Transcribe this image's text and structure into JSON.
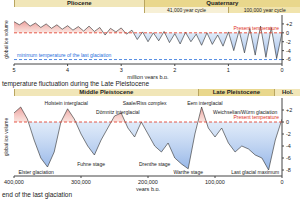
{
  "heading": "temperature fluctuation during the Late Pleistocene",
  "caption": "end of the last glaciation",
  "chart_data": [
    {
      "type": "area",
      "x_label": "million years b.p.",
      "y_label": "global ice volume",
      "periods": [
        {
          "name": "Pliocene",
          "start": 5,
          "end": 2.58
        },
        {
          "name": "Quaternary",
          "start": 2.58,
          "end": 0
        }
      ],
      "cycles": [
        {
          "name": "41,000 year cycle",
          "start": 2.58,
          "end": 1
        },
        {
          "name": "100,000 year cycle",
          "start": 1,
          "end": 0
        }
      ],
      "x": [
        5.0,
        4.9,
        4.8,
        4.7,
        4.6,
        4.5,
        4.4,
        4.3,
        4.2,
        4.1,
        4.0,
        3.9,
        3.8,
        3.7,
        3.6,
        3.5,
        3.4,
        3.3,
        3.2,
        3.1,
        3.0,
        2.9,
        2.8,
        2.7,
        2.6,
        2.5,
        2.4,
        2.3,
        2.2,
        2.1,
        2.0,
        1.9,
        1.8,
        1.7,
        1.6,
        1.5,
        1.4,
        1.3,
        1.2,
        1.1,
        1.0,
        0.9,
        0.8,
        0.7,
        0.6,
        0.5,
        0.4,
        0.3,
        0.2,
        0.1,
        0.0
      ],
      "values": [
        2.5,
        1.8,
        2.6,
        1.5,
        2.2,
        1.2,
        2.0,
        1.0,
        1.8,
        0.8,
        1.6,
        0.6,
        1.4,
        0.4,
        1.5,
        0.3,
        1.2,
        -0.5,
        1.0,
        0.2,
        1.1,
        -0.3,
        0.6,
        -1.5,
        0.2,
        -2.0,
        0.0,
        -1.8,
        0.3,
        -2.2,
        -0.2,
        -2.5,
        0.1,
        -2.0,
        -0.3,
        -2.8,
        0.0,
        -2.6,
        -0.5,
        -3.0,
        0.2,
        -4.0,
        0.5,
        -4.5,
        1.0,
        -5.0,
        1.5,
        -5.5,
        1.2,
        -5.8,
        0.0
      ],
      "color": "#2b2b2b",
      "xlim": [
        5,
        0
      ],
      "xticks": [
        5,
        4,
        3,
        2,
        1,
        0
      ],
      "ylim": [
        -7,
        4
      ],
      "yticks": [
        {
          "value": 2,
          "label": "+2"
        },
        0,
        -2,
        -4,
        -6
      ],
      "reference_lines": [
        {
          "label": "Present temperature",
          "value": 0,
          "color": "#e0301e"
        },
        {
          "label": "minimum temperature of the last glaciation",
          "value": -6,
          "color": "#2a6fdb"
        }
      ]
    },
    {
      "type": "area",
      "x_label": "years b.p.",
      "y_label": "global ice volume",
      "periods": [
        {
          "name": "Middle Pleistocene",
          "start": 400000,
          "end": 126000
        },
        {
          "name": "Late Pleistocene",
          "start": 126000,
          "end": 11700
        },
        {
          "name": "Hol.",
          "start": 11700,
          "end": 0
        }
      ],
      "x": [
        400000,
        390000,
        380000,
        370000,
        360000,
        350000,
        340000,
        330000,
        320000,
        310000,
        300000,
        290000,
        280000,
        270000,
        260000,
        250000,
        240000,
        230000,
        220000,
        210000,
        200000,
        190000,
        180000,
        170000,
        160000,
        150000,
        140000,
        130000,
        120000,
        110000,
        100000,
        90000,
        80000,
        70000,
        60000,
        50000,
        40000,
        30000,
        20000,
        10000,
        0
      ],
      "values": [
        1.5,
        2.5,
        0.5,
        -3,
        -6,
        -7.5,
        -5,
        0,
        2.2,
        0.5,
        -2,
        -4,
        -5.5,
        -3,
        -1,
        1,
        1.5,
        -1,
        -2.5,
        0,
        -2,
        -4,
        -5,
        -3.5,
        -6,
        -7,
        -7.8,
        -2,
        2.5,
        -1,
        -2.5,
        -1,
        -3.5,
        -5,
        -4,
        -4.5,
        -5.5,
        -6,
        -8,
        -3,
        0.5
      ],
      "color": "#2b2b2b",
      "xlim": [
        400000,
        0
      ],
      "xticks": [
        {
          "value": 400000,
          "label": "400,000"
        },
        {
          "value": 300000,
          "label": "300,000"
        },
        {
          "value": 200000,
          "label": "200,000"
        },
        {
          "value": 100000,
          "label": "100,000"
        },
        0
      ],
      "ylim": [
        -9,
        4
      ],
      "yticks": [
        {
          "value": 2,
          "label": "+2"
        },
        0,
        -2,
        -4,
        -6,
        -8
      ],
      "reference_lines": [
        {
          "label": "Present temperature",
          "value": 0,
          "color": "#e0301e"
        }
      ],
      "annotations": [
        {
          "text": "Holstein interglacial",
          "x": 322000,
          "y": 3.2
        },
        {
          "text": "Saale/Riss complex",
          "x": 205000,
          "y": 3.2
        },
        {
          "text": "Eem interglacial",
          "x": 115000,
          "y": 3.2
        },
        {
          "text": "Dömnitz interglacial",
          "x": 245000,
          "y": 1.6
        },
        {
          "text": "Weichselian/Würm glaciation",
          "x": 55000,
          "y": 1.6
        },
        {
          "text": "Elster glaciation",
          "x": 367000,
          "y": -8.3
        },
        {
          "text": "Fuhne stage",
          "x": 285000,
          "y": -7
        },
        {
          "text": "Drenthe stage",
          "x": 190000,
          "y": -7
        },
        {
          "text": "Warthe stage",
          "x": 140000,
          "y": -8.4
        },
        {
          "text": "Last glacial maximum",
          "x": 40000,
          "y": -8.4
        }
      ]
    }
  ]
}
